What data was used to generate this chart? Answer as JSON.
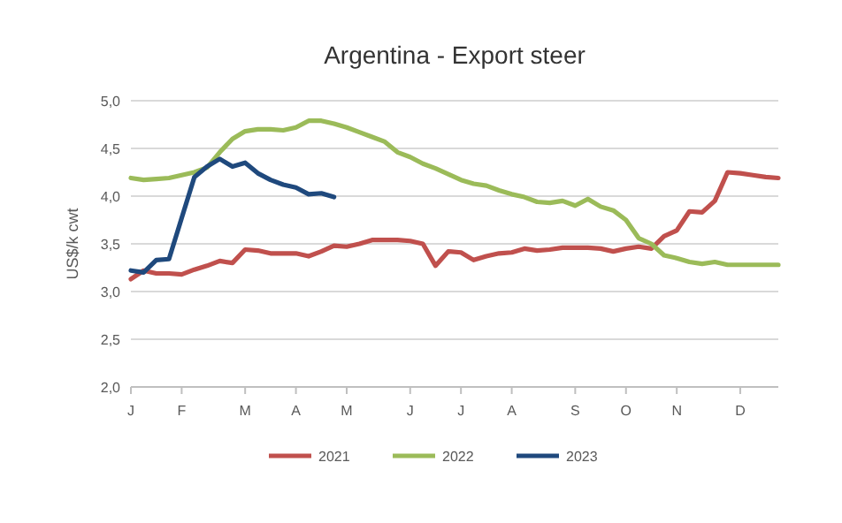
{
  "chart_data": {
    "type": "line",
    "title": "Argentina - Export steer",
    "ylabel": "US$/k cwt",
    "categories": [
      "J",
      null,
      null,
      null,
      "F",
      null,
      null,
      null,
      null,
      "M",
      null,
      null,
      null,
      "A",
      null,
      null,
      null,
      "M",
      null,
      null,
      null,
      null,
      "J",
      null,
      null,
      null,
      "J",
      null,
      null,
      null,
      "A",
      null,
      null,
      null,
      null,
      "S",
      null,
      null,
      null,
      "O",
      null,
      null,
      null,
      "N",
      null,
      null,
      null,
      null,
      "D",
      null,
      null,
      null
    ],
    "ylim": [
      2,
      5
    ],
    "yticks": [
      {
        "value": 2,
        "label": "2,0"
      },
      {
        "value": 2.5,
        "label": "2,5"
      },
      {
        "value": 3,
        "label": "3,0"
      },
      {
        "value": 3.5,
        "label": "3,5"
      },
      {
        "value": 4,
        "label": "4,0"
      },
      {
        "value": 4.5,
        "label": "4,5"
      },
      {
        "value": 5,
        "label": "5,0"
      }
    ],
    "grid": "y",
    "legend": "bottom",
    "line_style": "solid",
    "marker": "none",
    "series": [
      {
        "name": "2021",
        "color": "#c0504d",
        "values": [
          3.13,
          3.22,
          3.19,
          3.19,
          3.18,
          3.23,
          3.27,
          3.32,
          3.3,
          3.44,
          3.43,
          3.4,
          3.4,
          3.4,
          3.37,
          3.42,
          3.48,
          3.47,
          3.5,
          3.54,
          3.54,
          3.54,
          3.53,
          3.5,
          3.27,
          3.42,
          3.41,
          3.33,
          3.37,
          3.4,
          3.41,
          3.45,
          3.43,
          3.44,
          3.46,
          3.46,
          3.46,
          3.45,
          3.42,
          3.45,
          3.47,
          3.45,
          3.58,
          3.64,
          3.84,
          3.83,
          3.95,
          4.25,
          4.24,
          4.22,
          4.2,
          4.19
        ]
      },
      {
        "name": "2022",
        "color": "#9bbb59",
        "values": [
          4.19,
          4.17,
          4.18,
          4.19,
          4.22,
          4.25,
          4.3,
          4.46,
          4.6,
          4.68,
          4.7,
          4.7,
          4.69,
          4.72,
          4.79,
          4.79,
          4.76,
          4.72,
          4.67,
          4.62,
          4.57,
          4.46,
          4.41,
          4.34,
          4.29,
          4.23,
          4.17,
          4.13,
          4.11,
          4.06,
          4.02,
          3.99,
          3.94,
          3.93,
          3.95,
          3.9,
          3.97,
          3.89,
          3.85,
          3.75,
          3.56,
          3.5,
          3.38,
          3.35,
          3.31,
          3.29,
          3.31,
          3.28,
          3.28,
          3.28,
          3.28,
          3.28
        ]
      },
      {
        "name": "2023",
        "color": "#1f497d",
        "values": [
          3.22,
          3.2,
          3.33,
          3.34,
          3.77,
          4.2,
          4.31,
          4.39,
          4.31,
          4.35,
          4.24,
          4.17,
          4.12,
          4.09,
          4.02,
          4.03,
          3.99,
          null,
          null,
          null,
          null,
          null,
          null,
          null,
          null,
          null,
          null,
          null,
          null,
          null,
          null,
          null,
          null,
          null,
          null,
          null,
          null,
          null,
          null,
          null,
          null,
          null,
          null,
          null,
          null,
          null,
          null,
          null,
          null,
          null,
          null,
          null
        ]
      }
    ]
  }
}
